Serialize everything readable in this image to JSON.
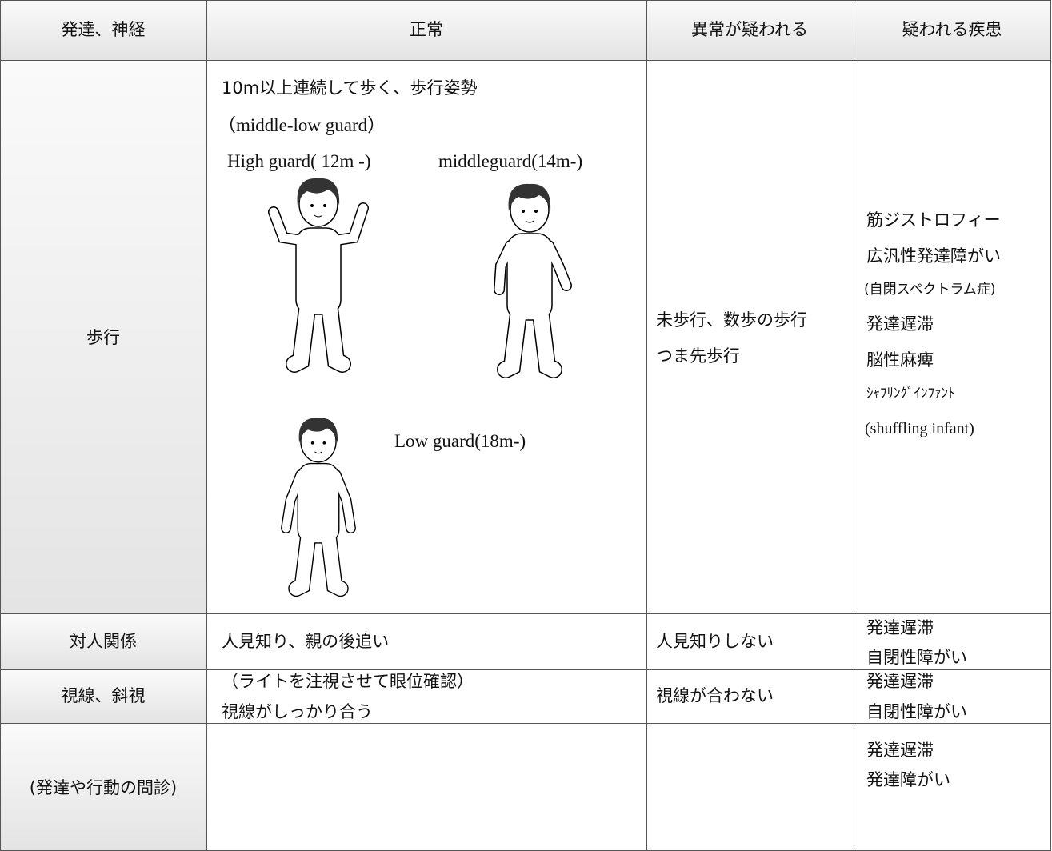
{
  "table": {
    "header": [
      "発達、神経",
      "正常",
      "異常が疑われる",
      "疑われる疾患"
    ],
    "rows": [
      {
        "item": "歩行",
        "normal": [
          "10m以上連続して歩く、歩行姿勢",
          "（middle-low guard）"
        ],
        "figure_labels": [
          "High guard( 12m -)",
          "middleguard(14m-)",
          "Low guard(18m-)"
        ],
        "abnormal": [
          "未歩行、数歩の歩行",
          "つま先歩行"
        ],
        "diseases": [
          "筋ジストロフィー",
          "広汎性発達障がい",
          "(自閉スペクトラム症)",
          "発達遅滞",
          "脳性麻痺",
          "ｼｬﾌﾘﾝｸﾞｲﾝﾌｧﾝﾄ",
          "(shuffling infant)"
        ]
      },
      {
        "item": "対人関係",
        "normal": [
          "人見知り、親の後追い"
        ],
        "abnormal": [
          "人見知りしない"
        ],
        "diseases": [
          "発達遅滞",
          "自閉性障がい"
        ]
      },
      {
        "item": "視線、斜視",
        "normal": [
          "（ライトを注視させて眼位確認）",
          "視線がしっかり合う"
        ],
        "abnormal": [
          "視線が合わない"
        ],
        "diseases": [
          "発達遅滞",
          "自閉性障がい"
        ]
      },
      {
        "item": "(発達や行動の問診)",
        "diseases": [
          "発達遅滞",
          "発達障がい"
        ]
      }
    ]
  }
}
